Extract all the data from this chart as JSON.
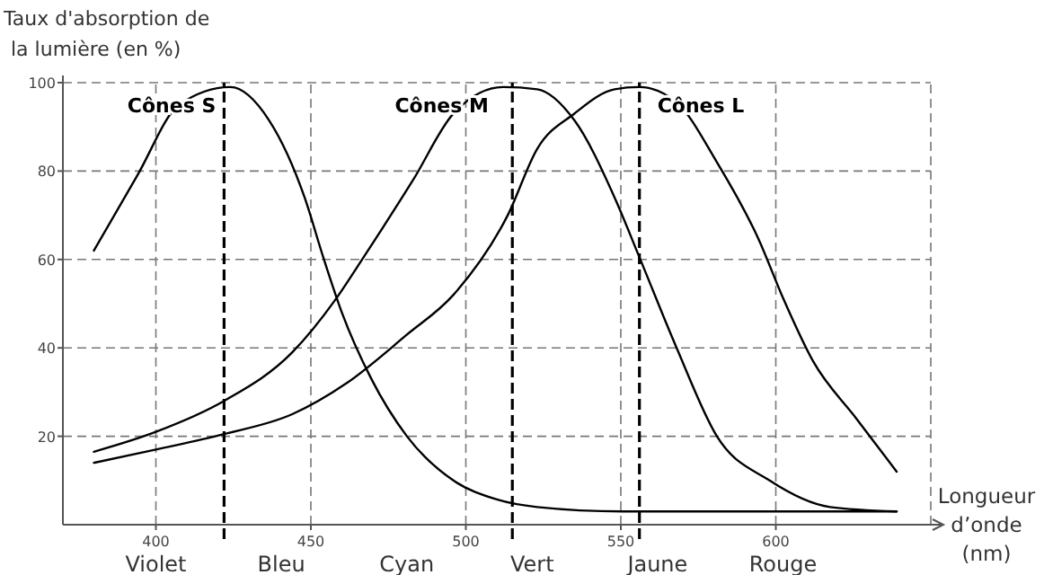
{
  "chart_data": {
    "type": "line",
    "ylabel": "Taux d'absorption de la lumière (en %)",
    "xlabel": "Longueur d’onde (nm)",
    "xlim": [
      370,
      650
    ],
    "ylim": [
      0,
      100
    ],
    "xticks": [
      400,
      450,
      500,
      550,
      600
    ],
    "yticks": [
      20,
      40,
      60,
      80,
      100
    ],
    "grid": true,
    "marker": "none",
    "line_style": "solid",
    "series": [
      {
        "name": "Cônes S",
        "color": "#000000",
        "x": [
          380,
          394,
          407.5,
          424,
          436.5,
          448,
          454,
          460,
          469.5,
          481,
          496,
          510,
          523,
          550.6,
          639
        ],
        "values": [
          62,
          79,
          95,
          99,
          91.5,
          74,
          60.5,
          48,
          33,
          20,
          10,
          5.7,
          4,
          3,
          3
        ]
      },
      {
        "name": "Cônes M",
        "color": "#000000",
        "x": [
          380,
          400,
          422,
          444,
          458,
          467,
          483,
          496,
          512,
          523,
          535,
          548,
          556,
          568,
          581,
          598,
          617.5,
          639
        ],
        "values": [
          16.5,
          21,
          28,
          39,
          51,
          60.5,
          78,
          93,
          99,
          98.5,
          91.5,
          74,
          60.5,
          40,
          20,
          10,
          4,
          3
        ]
      },
      {
        "name": "Cônes L",
        "color": "#000000",
        "x": [
          380,
          400,
          422,
          444,
          461.5,
          481,
          496,
          513.5,
          523,
          535,
          548,
          556,
          568,
          581,
          594.5,
          602.5,
          612,
          626,
          639
        ],
        "values": [
          14,
          17,
          20.5,
          25,
          32,
          43,
          52,
          70,
          85,
          93,
          98.5,
          99,
          95.5,
          82,
          64.5,
          51,
          37,
          24,
          12
        ]
      }
    ],
    "ref_lines": [
      {
        "axis": "x",
        "value": 422
      },
      {
        "axis": "x",
        "value": 515
      },
      {
        "axis": "x",
        "value": 556
      }
    ],
    "annotations": [
      "Violet",
      "Bleu",
      "Cyan",
      "Vert",
      "Jaune",
      "Rouge"
    ]
  }
}
